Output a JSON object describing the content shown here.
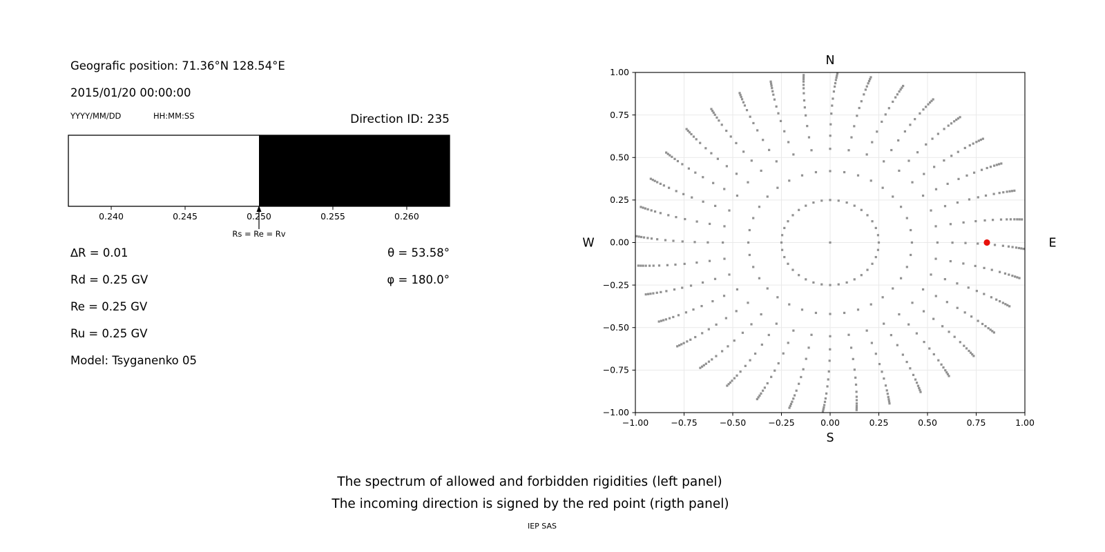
{
  "info_panel": {
    "geographic_position": "Geografic position: 71.36°N 128.54°E",
    "datetime": "2015/01/20 00:00:00",
    "date_format_hint": "YYYY/MM/DD",
    "time_format_hint": "HH:MM:SS",
    "direction_id": "Direction ID: 235",
    "params_left": {
      "delta_r": "∆R = 0.01",
      "rd": "Rd = 0.25 GV",
      "re": "Re = 0.25 GV",
      "ru": "Ru = 0.25 GV",
      "model": "Model: Tsyganenko 05"
    },
    "params_right": {
      "theta": "θ = 53.58°",
      "phi": "φ = 180.0°"
    }
  },
  "caption": {
    "line1": "The spectrum of allowed and forbidden rigidities (left panel)",
    "line2": "The incoming direction is signed by the red point (rigth panel)",
    "credit": "IEP SAS"
  },
  "chart_data": [
    {
      "id": "rigidity_spectrum",
      "type": "area",
      "description": "Allowed (white) vs forbidden (black) rigidity spectrum",
      "x_range": [
        0.2371,
        0.2629
      ],
      "ticks": [
        0.24,
        0.245,
        0.25,
        0.255,
        0.26
      ],
      "tick_labels": [
        "0.240",
        "0.245",
        "0.250",
        "0.255",
        "0.260"
      ],
      "boundary_value": 0.25,
      "boundary_label": "Rs = Re = Rv",
      "regions": [
        {
          "name": "allowed",
          "from": 0.2371,
          "to": 0.25,
          "color": "#ffffff"
        },
        {
          "name": "forbidden",
          "from": 0.25,
          "to": 0.2629,
          "color": "#000000"
        }
      ],
      "border_color": "#000000"
    },
    {
      "id": "incoming_direction_map",
      "type": "scatter",
      "description": "Sky map of scanned incoming directions; red point marks the incoming direction",
      "xlim": [
        -1.0,
        1.0
      ],
      "ylim": [
        -1.0,
        1.0
      ],
      "x_tick_labels": [
        "−1.00",
        "−0.75",
        "−0.50",
        "−0.25",
        "0.00",
        "0.25",
        "0.50",
        "0.75",
        "1.00"
      ],
      "y_tick_labels": [
        "1.00",
        "0.75",
        "0.50",
        "0.25",
        "0.00",
        "−0.25",
        "−0.50",
        "−0.75",
        "−1.00"
      ],
      "compass": {
        "north": "N",
        "south": "S",
        "east": "E",
        "west": "W"
      },
      "grid": true,
      "grid_color": "#e9e9e9",
      "rays": {
        "count": 36,
        "azimuth_step_deg": 10,
        "radii": [
          0.25,
          0.42,
          0.551,
          0.628,
          0.695,
          0.758,
          0.805,
          0.846,
          0.888,
          0.917,
          0.937,
          0.956,
          0.97,
          0.982,
          0.994
        ],
        "bend_deg_max": 2.2,
        "bend_start_r": 0.55,
        "origin_dot": true,
        "dot_color": "#919191",
        "dot_size_px": 3.2
      },
      "red_point": {
        "x": 0.805,
        "y": 0.0,
        "theta_deg": 53.58,
        "phi_deg": 180.0,
        "color": "#e8120c",
        "radius_px": 4.6
      }
    }
  ]
}
